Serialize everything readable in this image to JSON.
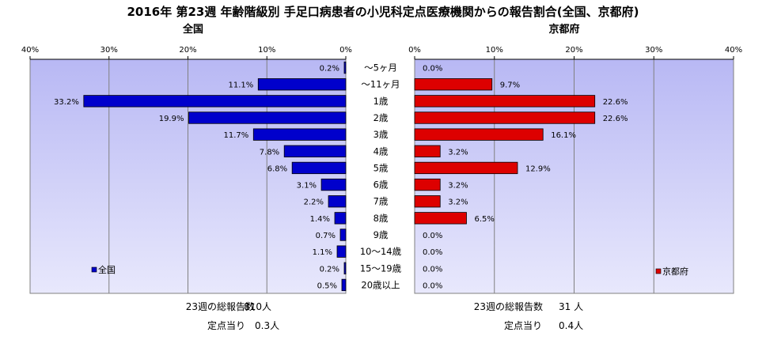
{
  "chart_data": {
    "type": "bar",
    "title": "2016年 第23週 年齢階級別 手足口病患者の小児科定点医療機関からの報告割合(全国、京都府)",
    "categories": [
      "～5ヶ月",
      "～11ヶ月",
      "1歳",
      "2歳",
      "3歳",
      "4歳",
      "5歳",
      "6歳",
      "7歳",
      "8歳",
      "9歳",
      "10～14歳",
      "15～19歳",
      "20歳以上"
    ],
    "xlim": [
      0,
      40
    ],
    "ticks": [
      "0%",
      "10%",
      "20%",
      "30%",
      "40%"
    ],
    "tick_values": [
      0,
      10,
      20,
      30,
      40
    ],
    "grid": true,
    "series": [
      {
        "name": "全国",
        "panel_title": "全国",
        "color": "#0000cc",
        "values": [
          0.2,
          11.1,
          33.2,
          19.9,
          11.7,
          7.8,
          6.8,
          3.1,
          2.2,
          1.4,
          0.7,
          1.1,
          0.2,
          0.5
        ],
        "labels": [
          "0.2%",
          "11.1%",
          "33.2%",
          "19.9%",
          "11.7%",
          "7.8%",
          "6.8%",
          "3.1%",
          "2.2%",
          "1.4%",
          "0.7%",
          "1.1%",
          "0.2%",
          "0.5%"
        ],
        "legend_position": "bottom-left"
      },
      {
        "name": "京都府",
        "panel_title": "京都府",
        "color": "#dd0000",
        "values": [
          0.0,
          9.7,
          22.6,
          22.6,
          16.1,
          3.2,
          12.9,
          3.2,
          3.2,
          6.5,
          0.0,
          0.0,
          0.0,
          0.0
        ],
        "labels": [
          "0.0%",
          "9.7%",
          "22.6%",
          "22.6%",
          "16.1%",
          "3.2%",
          "12.9%",
          "3.2%",
          "3.2%",
          "6.5%",
          "0.0%",
          "0.0%",
          "0.0%",
          "0.0%"
        ],
        "legend_position": "bottom-right"
      }
    ]
  },
  "footer": {
    "national": {
      "total_label": "23週の総報告数",
      "total_value": "810人",
      "per_label": "定点当り",
      "per_value": "0.3人"
    },
    "kyoto": {
      "total_label": "23週の総報告数",
      "total_value": "31 人",
      "per_label": "定点当り",
      "per_value": "0.4人"
    }
  },
  "colors": {
    "plot_bg_top": "#b8b8f4",
    "plot_bg_bottom": "#e8e8fc",
    "grid": "#808080"
  }
}
